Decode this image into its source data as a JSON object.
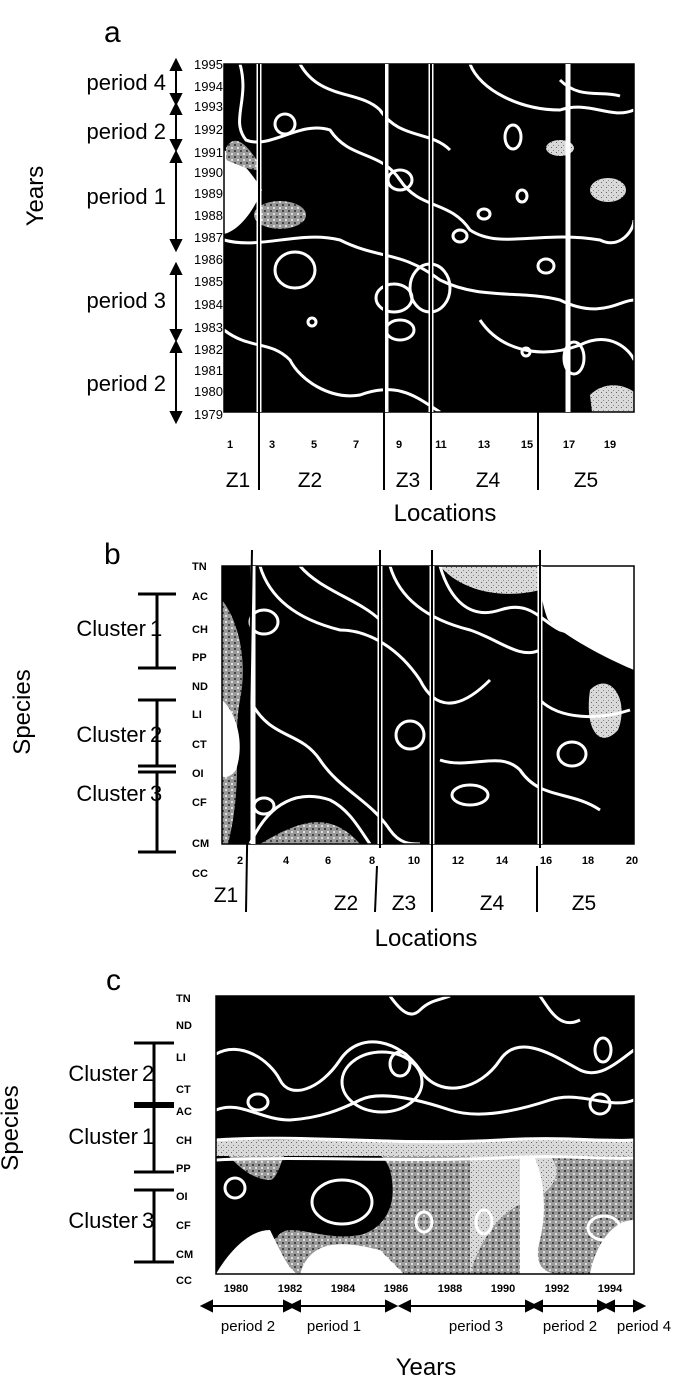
{
  "chart_data": [
    {
      "type": "heatmap",
      "panel": "a",
      "xlabel": "Locations",
      "ylabel": "Years",
      "x_tick_labels": [
        "1",
        "3",
        "5",
        "7",
        "9",
        "11",
        "13",
        "15",
        "17",
        "19"
      ],
      "y_tick_labels": [
        "1995",
        "1994",
        "1993",
        "1992",
        "1991",
        "1990",
        "1989",
        "1988",
        "1987",
        "1986",
        "1985",
        "1984",
        "1983",
        "1982",
        "1981",
        "1980",
        "1979"
      ],
      "zones": [
        "Z1",
        "Z2",
        "Z3",
        "Z4",
        "Z5"
      ],
      "periods": [
        {
          "label": "period 4",
          "from": 1993,
          "to": 1995
        },
        {
          "label": "period 2",
          "from": 1991,
          "to": 1993
        },
        {
          "label": "period 1",
          "from": 1987,
          "to": 1991
        },
        {
          "label": "period 3",
          "from": 1982,
          "to": 1986
        },
        {
          "label": "period 2",
          "from": 1979,
          "to": 1982
        }
      ]
    },
    {
      "type": "heatmap",
      "panel": "b",
      "xlabel": "Locations",
      "ylabel": "Species",
      "x_tick_labels": [
        "2",
        "4",
        "6",
        "8",
        "10",
        "12",
        "14",
        "16",
        "18",
        "20"
      ],
      "y_tick_labels": [
        "TN",
        "AC",
        "CH",
        "PP",
        "ND",
        "LI",
        "CT",
        "OI",
        "CF",
        "CM",
        "CC"
      ],
      "zones": [
        "Z1",
        "Z2",
        "Z3",
        "Z4",
        "Z5"
      ],
      "clusters": [
        {
          "label": "Cluster",
          "number": "1"
        },
        {
          "label": "Cluster",
          "number": "2"
        },
        {
          "label": "Cluster",
          "number": "3"
        }
      ]
    },
    {
      "type": "heatmap",
      "panel": "c",
      "xlabel": "Years",
      "ylabel": "Species",
      "x_tick_labels": [
        "1980",
        "1982",
        "1984",
        "1986",
        "1988",
        "1990",
        "1992",
        "1994"
      ],
      "y_tick_labels": [
        "TN",
        "ND",
        "LI",
        "CT",
        "AC",
        "CH",
        "PP",
        "OI",
        "CF",
        "CM",
        "CC"
      ],
      "clusters": [
        {
          "label": "Cluster",
          "number": "2"
        },
        {
          "label": "Cluster",
          "number": "1"
        },
        {
          "label": "Cluster",
          "number": "3"
        }
      ],
      "periods": [
        "period 2",
        "period 1",
        "period 3",
        "period 2",
        "period 4"
      ]
    }
  ]
}
